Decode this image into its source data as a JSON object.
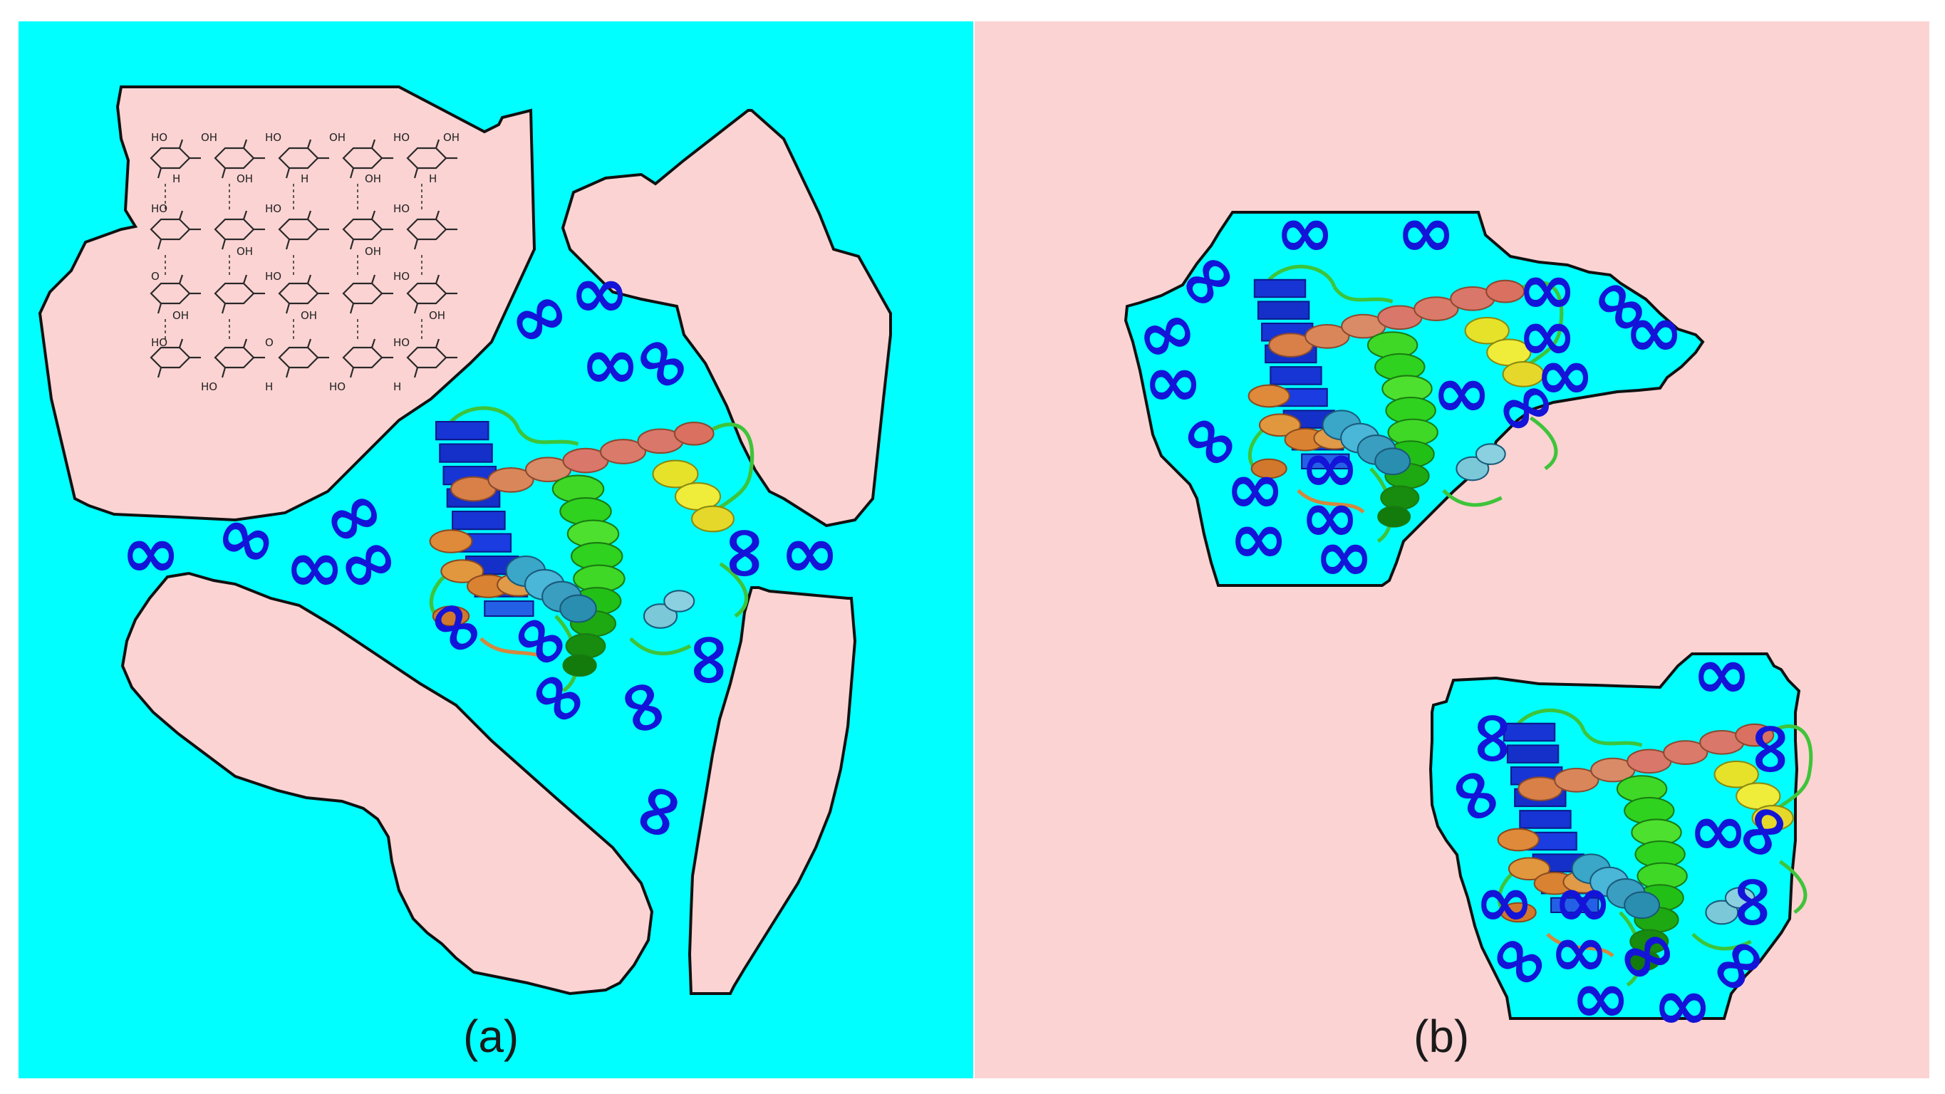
{
  "figure": {
    "panels": [
      {
        "id": "a",
        "label": "(a)"
      },
      {
        "id": "b",
        "label": "(b)"
      }
    ],
    "glyph": "∞",
    "chem_labels": [
      "HO",
      "OH",
      "H",
      "O"
    ],
    "colors": {
      "water": "#00ffff",
      "solid": "#fcd3d3",
      "outline": "#111111",
      "glyph": "#1414d8",
      "helix_blue": "#1530c8",
      "helix_cyan": "#3aa6c8",
      "helix_green": "#2fd21e",
      "helix_yellow": "#e6e22a",
      "helix_orange": "#de8a3a",
      "helix_salmon": "#d9776a"
    }
  }
}
